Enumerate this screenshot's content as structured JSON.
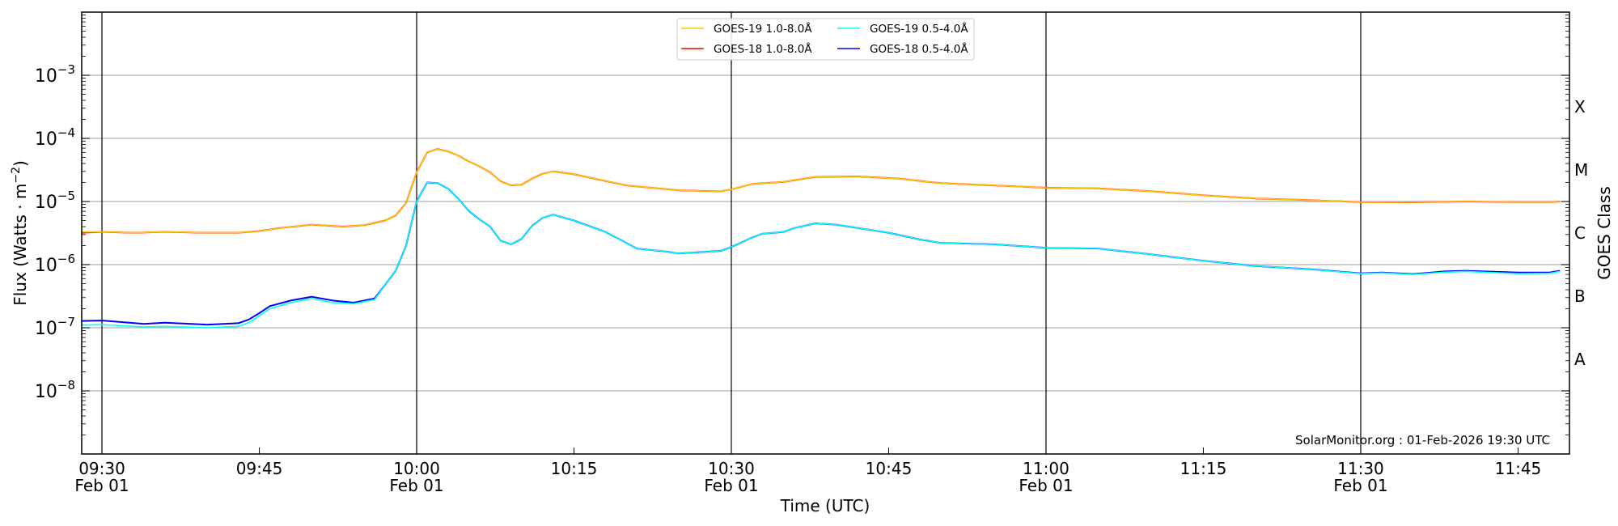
{
  "chart_data": {
    "type": "line",
    "title": "",
    "xlabel": "Time (UTC)",
    "ylabel": "Flux (Watts · m",
    "ylabel_sup": "−2",
    "ylabel_close": ")",
    "right_label": "GOES Class",
    "ylog": true,
    "ylim": [
      1e-09,
      0.01
    ],
    "xlim": [
      "09:28",
      "11:50"
    ],
    "grid": "horizontal at decades, vertical at major time ticks",
    "legend_placement": "top-center",
    "y_ticks": [
      {
        "value": 1e-08,
        "base": "10",
        "exp": "−8"
      },
      {
        "value": 1e-07,
        "base": "10",
        "exp": "−7"
      },
      {
        "value": 1e-06,
        "base": "10",
        "exp": "−6"
      },
      {
        "value": 1e-05,
        "base": "10",
        "exp": "−5"
      },
      {
        "value": 0.0001,
        "base": "10",
        "exp": "−4"
      },
      {
        "value": 0.001,
        "base": "10",
        "exp": "−3"
      }
    ],
    "x_ticks": [
      {
        "time": "09:30",
        "label": "09:30",
        "date": "Feb 01",
        "major": true
      },
      {
        "time": "09:45",
        "label": "09:45",
        "date": "",
        "major": false
      },
      {
        "time": "10:00",
        "label": "10:00",
        "date": "Feb 01",
        "major": true
      },
      {
        "time": "10:15",
        "label": "10:15",
        "date": "",
        "major": false
      },
      {
        "time": "10:30",
        "label": "10:30",
        "date": "Feb 01",
        "major": true
      },
      {
        "time": "10:45",
        "label": "10:45",
        "date": "",
        "major": false
      },
      {
        "time": "11:00",
        "label": "11:00",
        "date": "Feb 01",
        "major": true
      },
      {
        "time": "11:15",
        "label": "11:15",
        "date": "",
        "major": false
      },
      {
        "time": "11:30",
        "label": "11:30",
        "date": "Feb 01",
        "major": true
      },
      {
        "time": "11:45",
        "label": "11:45",
        "date": "",
        "major": false
      }
    ],
    "goes_classes": [
      {
        "label": "A",
        "value": 3.16e-08
      },
      {
        "label": "B",
        "value": 3.16e-07
      },
      {
        "label": "C",
        "value": 3.16e-06
      },
      {
        "label": "M",
        "value": 3.16e-05
      },
      {
        "label": "X",
        "value": 0.000316
      }
    ],
    "annotation": "SolarMonitor.org : 01-Feb-2026 19:30 UTC",
    "series": [
      {
        "name": "GOES-19 1.0-8.0Å",
        "color": "#ffc800",
        "points": [
          [
            "09:28",
            3.3e-06
          ],
          [
            "09:30",
            3.3e-06
          ],
          [
            "09:33",
            3.2e-06
          ],
          [
            "09:36",
            3.3e-06
          ],
          [
            "09:40",
            3.2e-06
          ],
          [
            "09:43",
            3.2e-06
          ],
          [
            "09:45",
            3.4e-06
          ],
          [
            "09:47",
            3.8e-06
          ],
          [
            "09:50",
            4.3e-06
          ],
          [
            "09:53",
            4e-06
          ],
          [
            "09:55",
            4.2e-06
          ],
          [
            "09:57",
            5e-06
          ],
          [
            "09:58",
            6e-06
          ],
          [
            "09:59",
            9.5e-06
          ],
          [
            "10:00",
            2.9e-05
          ],
          [
            "10:01",
            6e-05
          ],
          [
            "10:02",
            6.8e-05
          ],
          [
            "10:03",
            6.2e-05
          ],
          [
            "10:04",
            5.3e-05
          ],
          [
            "10:05",
            4.3e-05
          ],
          [
            "10:06",
            3.6e-05
          ],
          [
            "10:07",
            2.9e-05
          ],
          [
            "10:08",
            2.1e-05
          ],
          [
            "10:09",
            1.8e-05
          ],
          [
            "10:10",
            1.85e-05
          ],
          [
            "10:11",
            2.3e-05
          ],
          [
            "10:12",
            2.75e-05
          ],
          [
            "10:13",
            3e-05
          ],
          [
            "10:15",
            2.7e-05
          ],
          [
            "10:20",
            1.8e-05
          ],
          [
            "10:25",
            1.5e-05
          ],
          [
            "10:29",
            1.45e-05
          ],
          [
            "10:30",
            1.55e-05
          ],
          [
            "10:32",
            1.9e-05
          ],
          [
            "10:35",
            2.05e-05
          ],
          [
            "10:38",
            2.45e-05
          ],
          [
            "10:42",
            2.5e-05
          ],
          [
            "10:46",
            2.3e-05
          ],
          [
            "10:50",
            1.95e-05
          ],
          [
            "10:55",
            1.8e-05
          ],
          [
            "11:00",
            1.65e-05
          ],
          [
            "11:05",
            1.62e-05
          ],
          [
            "11:10",
            1.45e-05
          ],
          [
            "11:15",
            1.25e-05
          ],
          [
            "11:20",
            1.12e-05
          ],
          [
            "11:25",
            1.05e-05
          ],
          [
            "11:30",
            9.8e-06
          ],
          [
            "11:35",
            9.7e-06
          ],
          [
            "11:40",
            1e-05
          ],
          [
            "11:45",
            9.8e-06
          ],
          [
            "11:48",
            9.8e-06
          ],
          [
            "11:49",
            1e-05
          ]
        ]
      },
      {
        "name": "GOES-18 1.0-8.0Å",
        "color": "#ff0000",
        "points": [
          [
            "09:28",
            3.2e-06
          ],
          [
            "09:30",
            3.3e-06
          ],
          [
            "09:33",
            3.2e-06
          ],
          [
            "09:36",
            3.3e-06
          ],
          [
            "09:40",
            3.2e-06
          ],
          [
            "09:43",
            3.2e-06
          ],
          [
            "09:45",
            3.4e-06
          ],
          [
            "09:47",
            3.8e-06
          ],
          [
            "09:50",
            4.3e-06
          ],
          [
            "09:53",
            4e-06
          ],
          [
            "09:55",
            4.2e-06
          ],
          [
            "09:57",
            5e-06
          ],
          [
            "09:58",
            6e-06
          ],
          [
            "09:59",
            9.5e-06
          ],
          [
            "10:00",
            2.9e-05
          ],
          [
            "10:01",
            6e-05
          ],
          [
            "10:02",
            6.8e-05
          ],
          [
            "10:03",
            6.2e-05
          ],
          [
            "10:04",
            5.3e-05
          ],
          [
            "10:05",
            4.3e-05
          ],
          [
            "10:06",
            3.6e-05
          ],
          [
            "10:07",
            2.9e-05
          ],
          [
            "10:08",
            2.1e-05
          ],
          [
            "10:09",
            1.8e-05
          ],
          [
            "10:10",
            1.85e-05
          ],
          [
            "10:11",
            2.3e-05
          ],
          [
            "10:12",
            2.75e-05
          ],
          [
            "10:13",
            3e-05
          ],
          [
            "10:15",
            2.7e-05
          ],
          [
            "10:20",
            1.8e-05
          ],
          [
            "10:25",
            1.5e-05
          ],
          [
            "10:29",
            1.45e-05
          ],
          [
            "10:30",
            1.55e-05
          ],
          [
            "10:32",
            1.9e-05
          ],
          [
            "10:35",
            2.05e-05
          ],
          [
            "10:38",
            2.45e-05
          ],
          [
            "10:42",
            2.5e-05
          ],
          [
            "10:46",
            2.3e-05
          ],
          [
            "10:50",
            1.95e-05
          ],
          [
            "10:55",
            1.8e-05
          ],
          [
            "11:00",
            1.65e-05
          ],
          [
            "11:05",
            1.62e-05
          ],
          [
            "11:10",
            1.45e-05
          ],
          [
            "11:15",
            1.25e-05
          ],
          [
            "11:20",
            1.12e-05
          ],
          [
            "11:25",
            1.05e-05
          ],
          [
            "11:30",
            9.8e-06
          ],
          [
            "11:35",
            9.7e-06
          ],
          [
            "11:40",
            1e-05
          ],
          [
            "11:45",
            9.8e-06
          ],
          [
            "11:48",
            9.8e-06
          ],
          [
            "11:49",
            1e-05
          ]
        ]
      },
      {
        "name": "GOES-19 0.5-4.0Å",
        "color": "#00ffff",
        "points": [
          [
            "09:28",
            1.1e-07
          ],
          [
            "09:30",
            1.12e-07
          ],
          [
            "09:34",
            1.03e-07
          ],
          [
            "09:36",
            1.05e-07
          ],
          [
            "09:40",
            1e-07
          ],
          [
            "09:43",
            1.05e-07
          ],
          [
            "09:44",
            1.2e-07
          ],
          [
            "09:45",
            1.55e-07
          ],
          [
            "09:46",
            2e-07
          ],
          [
            "09:48",
            2.5e-07
          ],
          [
            "09:50",
            2.9e-07
          ],
          [
            "09:52",
            2.5e-07
          ],
          [
            "09:54",
            2.4e-07
          ],
          [
            "09:56",
            2.8e-07
          ],
          [
            "09:57",
            4.8e-07
          ],
          [
            "09:58",
            8e-07
          ],
          [
            "09:59",
            2e-06
          ],
          [
            "10:00",
            1e-05
          ],
          [
            "10:01",
            2e-05
          ],
          [
            "10:02",
            1.95e-05
          ],
          [
            "10:03",
            1.6e-05
          ],
          [
            "10:04",
            1.1e-05
          ],
          [
            "10:05",
            7e-06
          ],
          [
            "10:06",
            5.2e-06
          ],
          [
            "10:07",
            4e-06
          ],
          [
            "10:08",
            2.4e-06
          ],
          [
            "10:09",
            2.1e-06
          ],
          [
            "10:10",
            2.55e-06
          ],
          [
            "10:11",
            4.1e-06
          ],
          [
            "10:12",
            5.5e-06
          ],
          [
            "10:13",
            6.2e-06
          ],
          [
            "10:15",
            5e-06
          ],
          [
            "10:18",
            3.3e-06
          ],
          [
            "10:20",
            2.2e-06
          ],
          [
            "10:21",
            1.8e-06
          ],
          [
            "10:24",
            1.6e-06
          ],
          [
            "10:25",
            1.5e-06
          ],
          [
            "10:29",
            1.65e-06
          ],
          [
            "10:30",
            1.9e-06
          ],
          [
            "10:32",
            2.7e-06
          ],
          [
            "10:33",
            3.1e-06
          ],
          [
            "10:35",
            3.3e-06
          ],
          [
            "10:36",
            3.8e-06
          ],
          [
            "10:38",
            4.5e-06
          ],
          [
            "10:40",
            4.3e-06
          ],
          [
            "10:45",
            3.2e-06
          ],
          [
            "10:48",
            2.5e-06
          ],
          [
            "10:50",
            2.2e-06
          ],
          [
            "10:55",
            2.1e-06
          ],
          [
            "11:00",
            1.85e-06
          ],
          [
            "11:05",
            1.8e-06
          ],
          [
            "11:10",
            1.45e-06
          ],
          [
            "11:15",
            1.15e-06
          ],
          [
            "11:20",
            9.5e-07
          ],
          [
            "11:25",
            8.5e-07
          ],
          [
            "11:30",
            7.2e-07
          ],
          [
            "11:32",
            7.4e-07
          ],
          [
            "11:35",
            7e-07
          ],
          [
            "11:38",
            7.6e-07
          ],
          [
            "11:40",
            7.8e-07
          ],
          [
            "11:45",
            7.2e-07
          ],
          [
            "11:48",
            7.3e-07
          ],
          [
            "11:49",
            7.8e-07
          ]
        ]
      },
      {
        "name": "GOES-18 0.5-4.0Å",
        "color": "#0000ff",
        "points": [
          [
            "09:28",
            1.28e-07
          ],
          [
            "09:30",
            1.3e-07
          ],
          [
            "09:34",
            1.15e-07
          ],
          [
            "09:36",
            1.2e-07
          ],
          [
            "09:40",
            1.12e-07
          ],
          [
            "09:43",
            1.18e-07
          ],
          [
            "09:44",
            1.35e-07
          ],
          [
            "09:45",
            1.7e-07
          ],
          [
            "09:46",
            2.2e-07
          ],
          [
            "09:48",
            2.7e-07
          ],
          [
            "09:50",
            3.1e-07
          ],
          [
            "09:52",
            2.7e-07
          ],
          [
            "09:54",
            2.5e-07
          ],
          [
            "09:56",
            2.9e-07
          ],
          [
            "09:57",
            4.8e-07
          ],
          [
            "09:58",
            8e-07
          ],
          [
            "09:59",
            2e-06
          ],
          [
            "10:00",
            1e-05
          ],
          [
            "10:01",
            2e-05
          ],
          [
            "10:02",
            1.95e-05
          ],
          [
            "10:03",
            1.6e-05
          ],
          [
            "10:04",
            1.1e-05
          ],
          [
            "10:05",
            7e-06
          ],
          [
            "10:06",
            5.2e-06
          ],
          [
            "10:07",
            4e-06
          ],
          [
            "10:08",
            2.4e-06
          ],
          [
            "10:09",
            2.1e-06
          ],
          [
            "10:10",
            2.55e-06
          ],
          [
            "10:11",
            4.1e-06
          ],
          [
            "10:12",
            5.5e-06
          ],
          [
            "10:13",
            6.2e-06
          ],
          [
            "10:15",
            5e-06
          ],
          [
            "10:18",
            3.3e-06
          ],
          [
            "10:20",
            2.2e-06
          ],
          [
            "10:21",
            1.8e-06
          ],
          [
            "10:24",
            1.6e-06
          ],
          [
            "10:25",
            1.5e-06
          ],
          [
            "10:29",
            1.65e-06
          ],
          [
            "10:30",
            1.9e-06
          ],
          [
            "10:32",
            2.7e-06
          ],
          [
            "10:33",
            3.1e-06
          ],
          [
            "10:35",
            3.3e-06
          ],
          [
            "10:36",
            3.8e-06
          ],
          [
            "10:38",
            4.5e-06
          ],
          [
            "10:40",
            4.3e-06
          ],
          [
            "10:45",
            3.2e-06
          ],
          [
            "10:48",
            2.5e-06
          ],
          [
            "10:50",
            2.2e-06
          ],
          [
            "10:55",
            2.1e-06
          ],
          [
            "11:00",
            1.85e-06
          ],
          [
            "11:05",
            1.8e-06
          ],
          [
            "11:10",
            1.45e-06
          ],
          [
            "11:15",
            1.15e-06
          ],
          [
            "11:20",
            9.5e-07
          ],
          [
            "11:25",
            8.5e-07
          ],
          [
            "11:30",
            7.3e-07
          ],
          [
            "11:32",
            7.5e-07
          ],
          [
            "11:35",
            7.1e-07
          ],
          [
            "11:38",
            7.8e-07
          ],
          [
            "11:40",
            8e-07
          ],
          [
            "11:45",
            7.5e-07
          ],
          [
            "11:48",
            7.5e-07
          ],
          [
            "11:49",
            8e-07
          ]
        ]
      }
    ]
  }
}
